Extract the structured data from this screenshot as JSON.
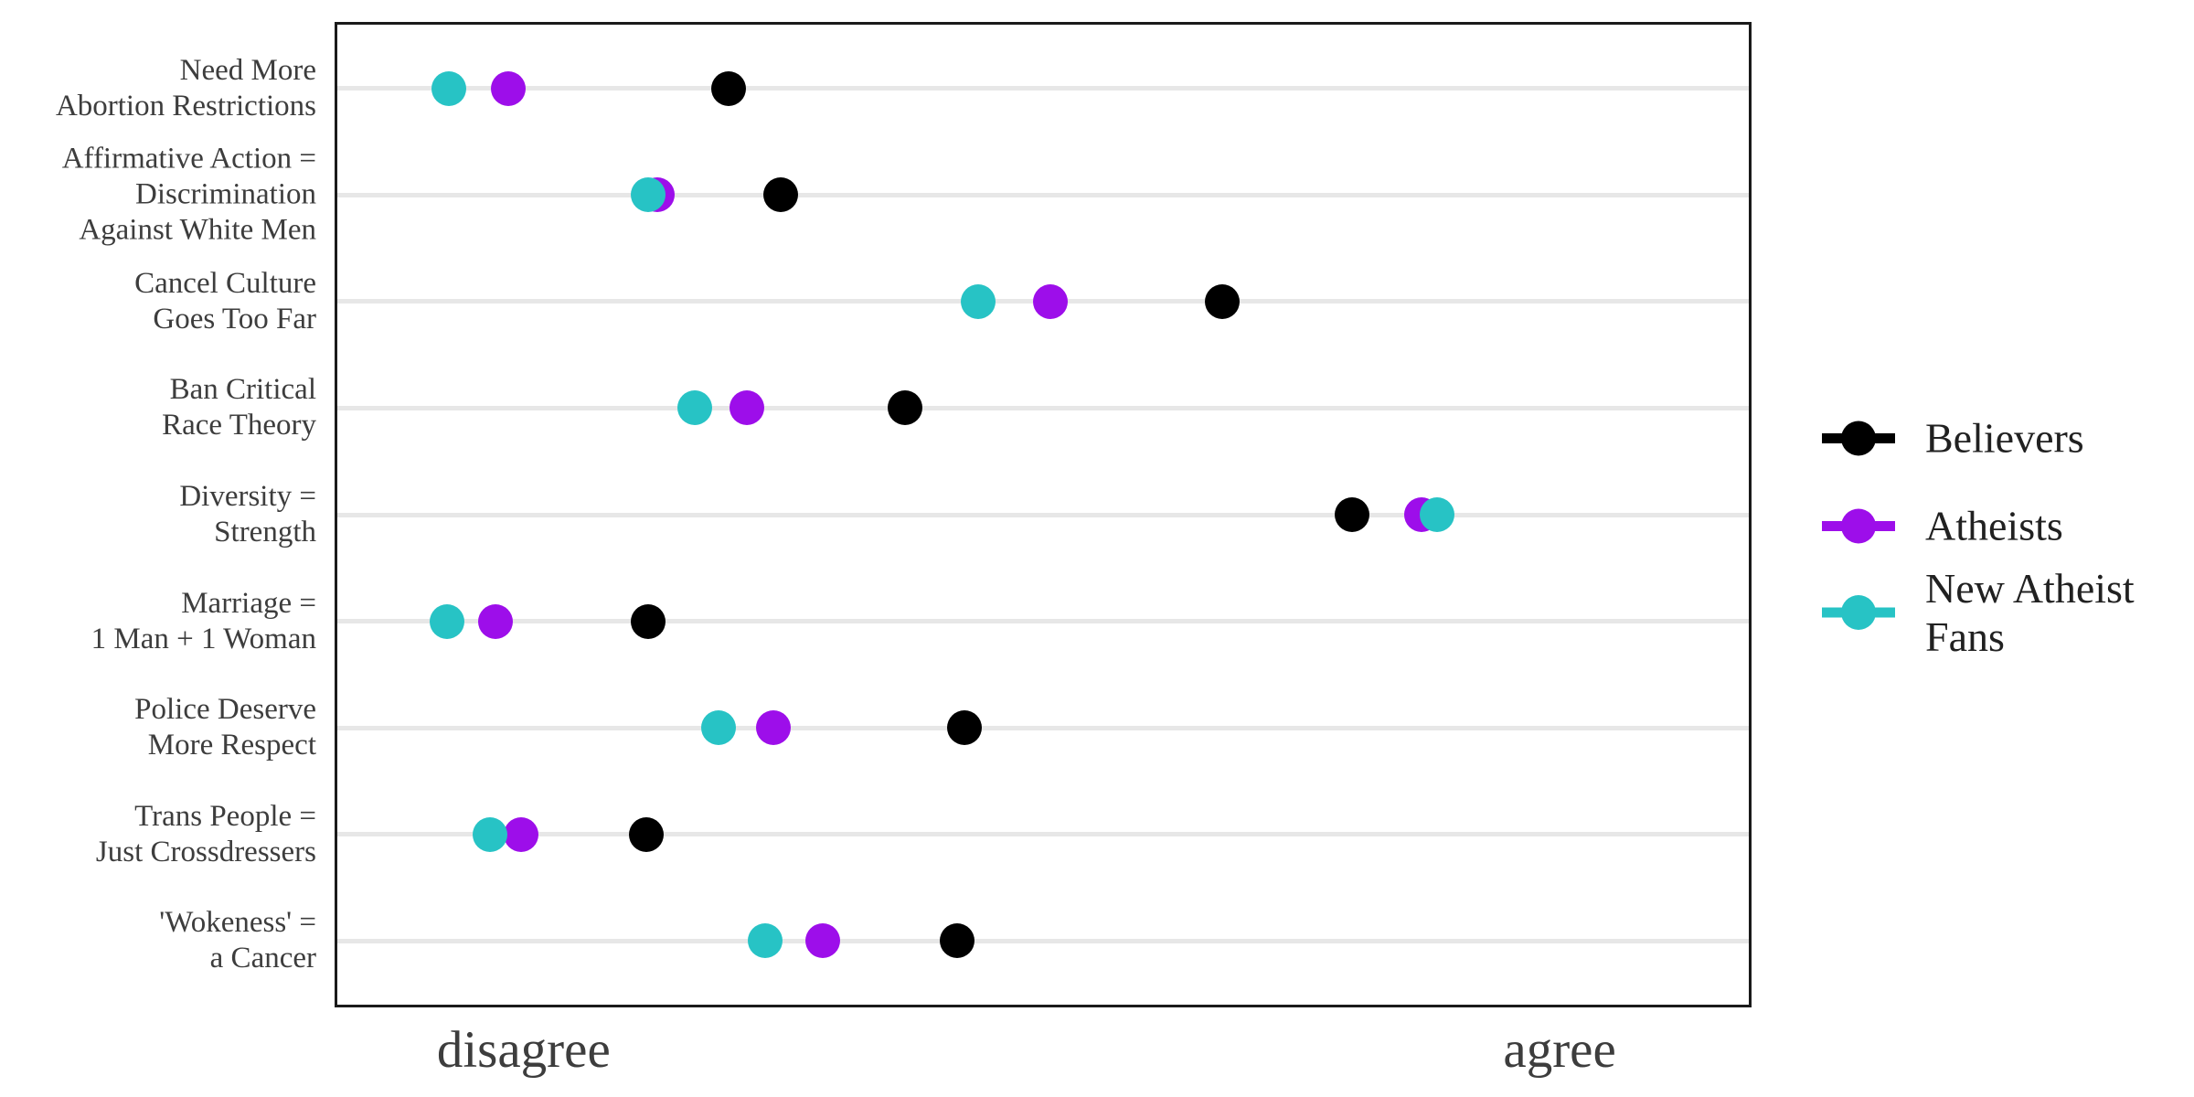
{
  "colors": {
    "background": "#FFFFFF",
    "panel_border": "#1A1A1A",
    "grid": "#E7E7E7",
    "axis_text": "#3D3D3D",
    "legend_text": "#212121",
    "believers": "#000000",
    "atheists": "#9D0EEA",
    "new_atheist_fans": "#27C3C5"
  },
  "chart_data": {
    "type": "scatter",
    "subtype": "horizontal-dot-plot",
    "title": "",
    "xlabel": "",
    "ylabel": "",
    "grid": "horizontal major gridlines only",
    "legend_position": "right",
    "x_axis": {
      "numeric_ticks_shown": false,
      "unit": "relative position across panel, 0 = left edge, 1 = right edge",
      "tick_labels": [
        {
          "label": "disagree",
          "pos": 0.132
        },
        {
          "label": "agree",
          "pos": 0.866
        }
      ]
    },
    "categories": [
      {
        "lines": [
          "Need More",
          "Abortion Restrictions"
        ]
      },
      {
        "lines": [
          "Affirmative Action =",
          "Discrimination",
          "Against White Men"
        ]
      },
      {
        "lines": [
          "Cancel Culture",
          "Goes Too Far"
        ]
      },
      {
        "lines": [
          "Ban Critical",
          "Race Theory"
        ]
      },
      {
        "lines": [
          "Diversity =",
          "Strength"
        ]
      },
      {
        "lines": [
          "Marriage =",
          "1 Man + 1 Woman"
        ]
      },
      {
        "lines": [
          "Police Deserve",
          "More Respect"
        ]
      },
      {
        "lines": [
          "Trans People =",
          "Just Crossdressers"
        ]
      },
      {
        "lines": [
          "'Wokeness' =",
          "a Cancer"
        ]
      }
    ],
    "series": [
      {
        "name": "Believers",
        "color": "#000000",
        "values": [
          0.277,
          0.314,
          0.627,
          0.402,
          0.719,
          0.22,
          0.444,
          0.219,
          0.439
        ]
      },
      {
        "name": "Atheists",
        "color": "#9D0EEA",
        "values": [
          0.121,
          0.227,
          0.505,
          0.29,
          0.768,
          0.112,
          0.309,
          0.13,
          0.344
        ]
      },
      {
        "name": "New Atheist Fans",
        "color": "#27C3C5",
        "values": [
          0.079,
          0.22,
          0.454,
          0.253,
          0.779,
          0.078,
          0.27,
          0.108,
          0.303
        ]
      }
    ]
  },
  "legend": {
    "items": [
      {
        "label_lines": [
          "Believers"
        ],
        "color": "#000000"
      },
      {
        "label_lines": [
          "Atheists"
        ],
        "color": "#9D0EEA"
      },
      {
        "label_lines": [
          "New Atheist",
          "Fans"
        ],
        "color": "#27C3C5"
      }
    ]
  }
}
